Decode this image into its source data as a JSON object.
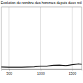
{
  "chart_data": {
    "type": "line",
    "title": "Evolution du nombre des hommes depuis deux mil",
    "x": [
      380,
      500,
      600,
      700,
      800,
      900,
      1000,
      1100,
      1200,
      1300,
      1400,
      1500,
      1600,
      1650
    ],
    "values": [
      230,
      210,
      210,
      210,
      220,
      240,
      310,
      320,
      400,
      430,
      370,
      460,
      550,
      510
    ],
    "color": "#000000",
    "xlim": [
      380,
      1650
    ],
    "xticks": [
      500,
      1000,
      1500
    ],
    "ylim": [
      0,
      6500
    ],
    "grid": true,
    "tick_labels": "x"
  }
}
